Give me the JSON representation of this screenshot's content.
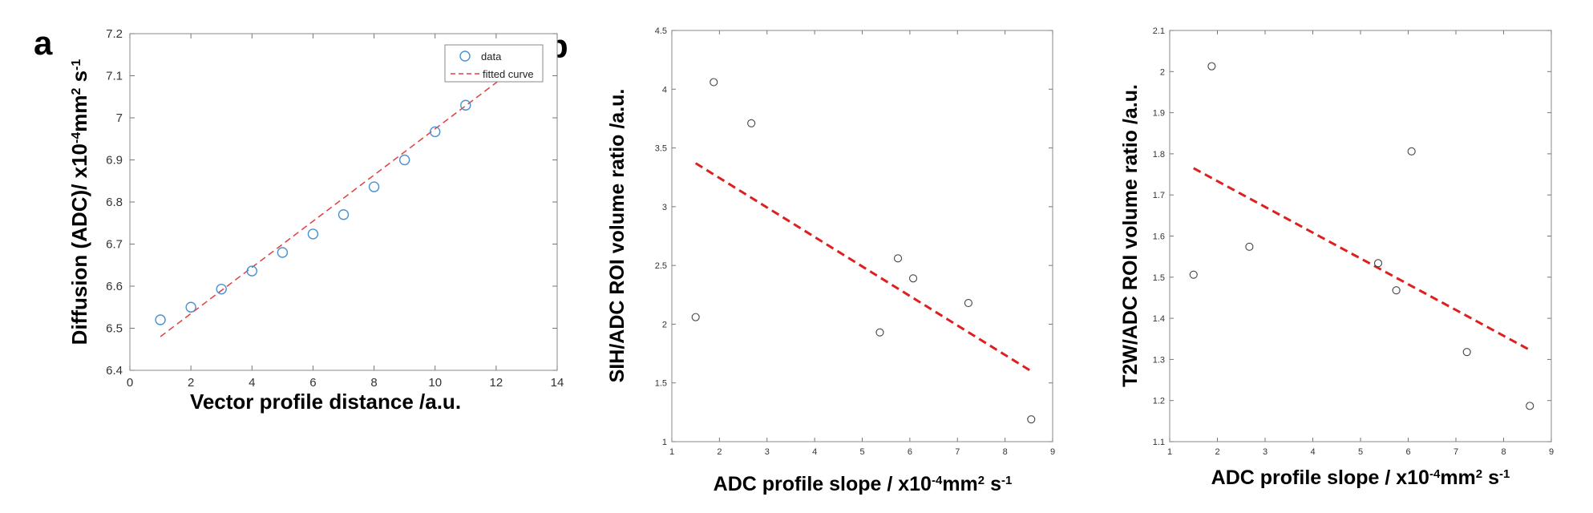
{
  "panels": {
    "a": "a",
    "b": "b"
  },
  "colors": {
    "marker_blue": "#4a90d0",
    "fit_red": "#e04040",
    "marker_gray": "#444444",
    "fit_red_strong": "#dd1f1f"
  },
  "chart_data": [
    {
      "type": "scatter",
      "panel": "a",
      "xlabel": "Vector profile distance /a.u.",
      "ylabel_main": "Diffusion (ADC)/ x10",
      "ylabel_sup1": "-4",
      "ylabel_mid": "mm",
      "ylabel_sup2": "2",
      "ylabel_tail": " s",
      "ylabel_sup3": "-1",
      "xlim": [
        0,
        14
      ],
      "ylim": [
        6.4,
        7.2
      ],
      "xticks": [
        "0",
        "2",
        "4",
        "6",
        "8",
        "10",
        "12",
        "14"
      ],
      "yticks": [
        "6.4",
        "6.5",
        "6.6",
        "6.7",
        "6.8",
        "6.9",
        "7",
        "7.1",
        "7.2"
      ],
      "legend": [
        "data",
        "fitted curve"
      ],
      "legend_position": "top-right",
      "series": [
        {
          "name": "data",
          "x": [
            1,
            2,
            3,
            4,
            5,
            6,
            7,
            8,
            9,
            10,
            11
          ],
          "y": [
            6.52,
            6.55,
            6.593,
            6.636,
            6.68,
            6.724,
            6.77,
            6.836,
            6.9,
            6.967,
            7.03
          ]
        },
        {
          "name": "fitted curve",
          "x": [
            1,
            12.3
          ],
          "y": [
            6.48,
            7.1
          ]
        }
      ]
    },
    {
      "type": "scatter",
      "panel": "b-left",
      "xlabel_main": "ADC profile slope / x10",
      "xlabel_sup1": "-4",
      "xlabel_mid": "mm",
      "xlabel_sup2": "2",
      "xlabel_tail": " s",
      "xlabel_sup3": "-1",
      "ylabel": "SIH/ADC ROI volume ratio /a.u.",
      "xlim": [
        1,
        9
      ],
      "ylim": [
        1,
        4.5
      ],
      "xticks": [
        "1",
        "2",
        "3",
        "4",
        "5",
        "6",
        "7",
        "8",
        "9"
      ],
      "yticks": [
        "1",
        "1.5",
        "2",
        "2.5",
        "3",
        "3.5",
        "4",
        "4.5"
      ],
      "series": [
        {
          "x": [
            1.5,
            1.88,
            2.67,
            5.37,
            5.75,
            6.07,
            7.23,
            8.55
          ],
          "y": [
            2.06,
            4.06,
            3.71,
            1.93,
            2.56,
            2.39,
            2.18,
            1.19
          ]
        }
      ],
      "fit": {
        "x": [
          1.5,
          8.55
        ],
        "y": [
          3.37,
          1.6
        ]
      }
    },
    {
      "type": "scatter",
      "panel": "b-right",
      "xlabel_main": "ADC profile slope / x10",
      "xlabel_sup1": "-4",
      "xlabel_mid": "mm",
      "xlabel_sup2": "2",
      "xlabel_tail": " s",
      "xlabel_sup3": "-1",
      "ylabel": "T2W/ADC ROI volume ratio /a.u.",
      "xlim": [
        1,
        9
      ],
      "ylim": [
        1.1,
        2.1
      ],
      "xticks": [
        "1",
        "2",
        "3",
        "4",
        "5",
        "6",
        "7",
        "8",
        "9"
      ],
      "yticks": [
        "1.1",
        "1.2",
        "1.3",
        "1.4",
        "1.5",
        "1.6",
        "1.7",
        "1.8",
        "1.9",
        "2",
        "2.1"
      ],
      "series": [
        {
          "x": [
            1.5,
            1.88,
            2.67,
            5.37,
            5.75,
            6.07,
            7.23,
            8.55
          ],
          "y": [
            1.506,
            2.013,
            1.574,
            1.534,
            1.468,
            1.806,
            1.318,
            1.187
          ]
        }
      ],
      "fit": {
        "x": [
          1.5,
          8.55
        ],
        "y": [
          1.765,
          1.323
        ]
      }
    }
  ]
}
